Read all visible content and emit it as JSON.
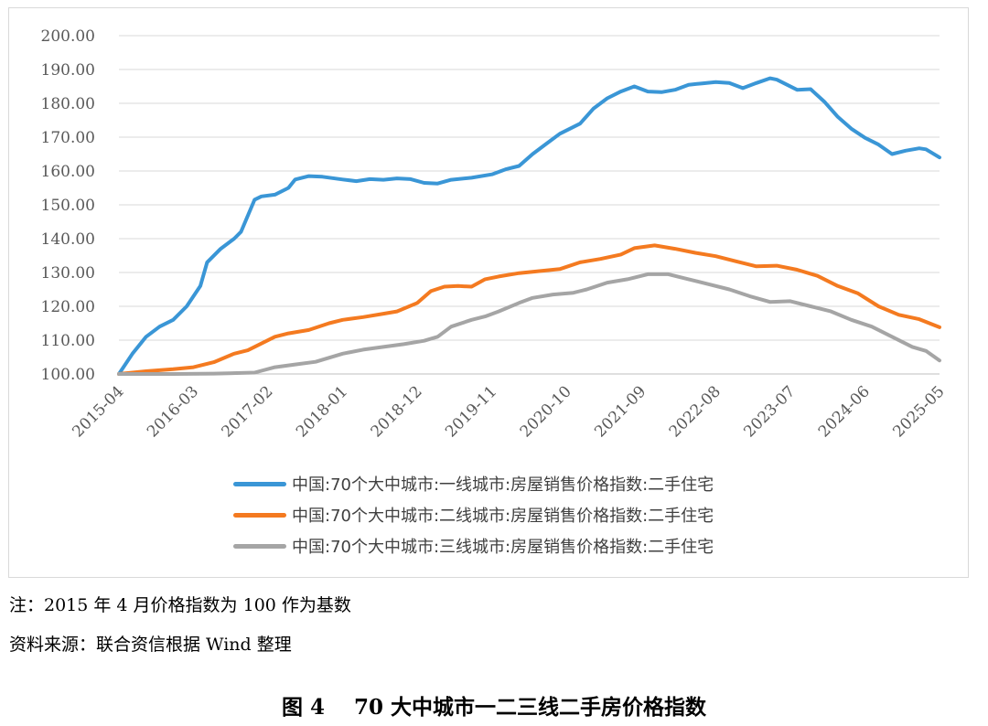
{
  "chart_data": {
    "type": "line",
    "title": "",
    "xlabel": "",
    "ylabel": "",
    "ylim": [
      100,
      200
    ],
    "yticks": [
      "100.00",
      "110.00",
      "120.00",
      "130.00",
      "140.00",
      "150.00",
      "160.00",
      "170.00",
      "180.00",
      "190.00",
      "200.00"
    ],
    "xticks": [
      "2015-04",
      "2016-03",
      "2017-02",
      "2018-01",
      "2018-12",
      "2019-11",
      "2020-10",
      "2021-09",
      "2022-08",
      "2023-07",
      "2024-06",
      "2025-05"
    ],
    "grid": "horizontal",
    "legend_position": "bottom",
    "x_start": "2015-04",
    "x_end": "2025-05",
    "series": [
      {
        "name": "中国:70个大中城市:一线城市:房屋销售价格指数:二手住宅",
        "color": "#3a96d6",
        "points": [
          [
            "2015-04",
            100.0
          ],
          [
            "2015-06",
            106.0
          ],
          [
            "2015-08",
            111.0
          ],
          [
            "2015-10",
            114.0
          ],
          [
            "2015-12",
            116.0
          ],
          [
            "2016-02",
            120.0
          ],
          [
            "2016-04",
            126.0
          ],
          [
            "2016-05",
            133.0
          ],
          [
            "2016-07",
            137.0
          ],
          [
            "2016-09",
            140.0
          ],
          [
            "2016-10",
            142.0
          ],
          [
            "2016-12",
            151.5
          ],
          [
            "2017-01",
            152.5
          ],
          [
            "2017-03",
            153.0
          ],
          [
            "2017-05",
            155.0
          ],
          [
            "2017-06",
            157.5
          ],
          [
            "2017-08",
            158.5
          ],
          [
            "2017-10",
            158.3
          ],
          [
            "2018-01",
            157.5
          ],
          [
            "2018-03",
            157.0
          ],
          [
            "2018-05",
            157.6
          ],
          [
            "2018-07",
            157.4
          ],
          [
            "2018-09",
            157.8
          ],
          [
            "2018-11",
            157.6
          ],
          [
            "2019-01",
            156.5
          ],
          [
            "2019-03",
            156.3
          ],
          [
            "2019-05",
            157.4
          ],
          [
            "2019-08",
            158.0
          ],
          [
            "2019-11",
            159.0
          ],
          [
            "2020-01",
            160.5
          ],
          [
            "2020-03",
            161.5
          ],
          [
            "2020-05",
            165.0
          ],
          [
            "2020-07",
            168.0
          ],
          [
            "2020-09",
            171.0
          ],
          [
            "2020-12",
            174.0
          ],
          [
            "2021-02",
            178.5
          ],
          [
            "2021-04",
            181.5
          ],
          [
            "2021-06",
            183.5
          ],
          [
            "2021-08",
            185.0
          ],
          [
            "2021-10",
            183.5
          ],
          [
            "2021-12",
            183.3
          ],
          [
            "2022-02",
            184.0
          ],
          [
            "2022-04",
            185.5
          ],
          [
            "2022-06",
            185.9
          ],
          [
            "2022-08",
            186.3
          ],
          [
            "2022-10",
            186.0
          ],
          [
            "2022-12",
            184.5
          ],
          [
            "2023-02",
            186.0
          ],
          [
            "2023-04",
            187.4
          ],
          [
            "2023-05",
            187.0
          ],
          [
            "2023-08",
            184.0
          ],
          [
            "2023-10",
            184.2
          ],
          [
            "2023-12",
            180.5
          ],
          [
            "2024-02",
            176.0
          ],
          [
            "2024-04",
            172.5
          ],
          [
            "2024-06",
            169.8
          ],
          [
            "2024-08",
            167.8
          ],
          [
            "2024-10",
            165.0
          ],
          [
            "2024-12",
            166.0
          ],
          [
            "2025-02",
            166.7
          ],
          [
            "2025-03",
            166.4
          ],
          [
            "2025-05",
            164.0
          ]
        ]
      },
      {
        "name": "中国:70个大中城市:二线城市:房屋销售价格指数:二手住宅",
        "color": "#f47a20",
        "points": [
          [
            "2015-04",
            100.0
          ],
          [
            "2015-08",
            100.8
          ],
          [
            "2015-12",
            101.4
          ],
          [
            "2016-03",
            102.0
          ],
          [
            "2016-06",
            103.5
          ],
          [
            "2016-09",
            106.0
          ],
          [
            "2016-11",
            107.0
          ],
          [
            "2017-01",
            109.0
          ],
          [
            "2017-03",
            111.0
          ],
          [
            "2017-05",
            112.0
          ],
          [
            "2017-08",
            113.0
          ],
          [
            "2017-11",
            115.0
          ],
          [
            "2018-01",
            116.0
          ],
          [
            "2018-04",
            116.8
          ],
          [
            "2018-07",
            117.8
          ],
          [
            "2018-09",
            118.5
          ],
          [
            "2018-12",
            121.0
          ],
          [
            "2019-02",
            124.5
          ],
          [
            "2019-04",
            125.8
          ],
          [
            "2019-06",
            126.0
          ],
          [
            "2019-08",
            125.8
          ],
          [
            "2019-10",
            128.0
          ],
          [
            "2019-12",
            128.8
          ],
          [
            "2020-03",
            129.8
          ],
          [
            "2020-06",
            130.4
          ],
          [
            "2020-09",
            131.0
          ],
          [
            "2020-12",
            133.0
          ],
          [
            "2021-03",
            134.0
          ],
          [
            "2021-06",
            135.3
          ],
          [
            "2021-08",
            137.2
          ],
          [
            "2021-11",
            138.0
          ],
          [
            "2022-02",
            137.0
          ],
          [
            "2022-05",
            135.8
          ],
          [
            "2022-08",
            134.8
          ],
          [
            "2022-11",
            133.3
          ],
          [
            "2023-02",
            131.8
          ],
          [
            "2023-05",
            132.0
          ],
          [
            "2023-08",
            130.8
          ],
          [
            "2023-11",
            129.0
          ],
          [
            "2024-02",
            126.0
          ],
          [
            "2024-05",
            123.8
          ],
          [
            "2024-08",
            120.0
          ],
          [
            "2024-11",
            117.5
          ],
          [
            "2025-02",
            116.2
          ],
          [
            "2025-05",
            113.8
          ]
        ]
      },
      {
        "name": "中国:70个大中城市:三线城市:房屋销售价格指数:二手住宅",
        "color": "#a5a5a5",
        "points": [
          [
            "2015-04",
            100.0
          ],
          [
            "2015-12",
            100.0
          ],
          [
            "2016-06",
            100.1
          ],
          [
            "2016-12",
            100.4
          ],
          [
            "2017-03",
            102.0
          ],
          [
            "2017-06",
            102.8
          ],
          [
            "2017-09",
            103.6
          ],
          [
            "2018-01",
            106.0
          ],
          [
            "2018-04",
            107.2
          ],
          [
            "2018-07",
            108.0
          ],
          [
            "2018-10",
            108.8
          ],
          [
            "2019-01",
            109.8
          ],
          [
            "2019-03",
            111.0
          ],
          [
            "2019-05",
            114.0
          ],
          [
            "2019-08",
            116.0
          ],
          [
            "2019-10",
            117.0
          ],
          [
            "2019-12",
            118.5
          ],
          [
            "2020-03",
            121.0
          ],
          [
            "2020-05",
            122.5
          ],
          [
            "2020-08",
            123.5
          ],
          [
            "2020-11",
            124.0
          ],
          [
            "2021-01",
            125.0
          ],
          [
            "2021-04",
            127.0
          ],
          [
            "2021-07",
            128.0
          ],
          [
            "2021-10",
            129.5
          ],
          [
            "2022-01",
            129.5
          ],
          [
            "2022-04",
            128.0
          ],
          [
            "2022-07",
            126.5
          ],
          [
            "2022-10",
            125.0
          ],
          [
            "2023-01",
            123.0
          ],
          [
            "2023-04",
            121.3
          ],
          [
            "2023-07",
            121.5
          ],
          [
            "2023-10",
            120.0
          ],
          [
            "2024-01",
            118.5
          ],
          [
            "2024-04",
            116.0
          ],
          [
            "2024-07",
            114.0
          ],
          [
            "2024-10",
            111.0
          ],
          [
            "2025-01",
            108.0
          ],
          [
            "2025-03",
            106.8
          ],
          [
            "2025-05",
            104.0
          ]
        ]
      }
    ]
  },
  "notes": {
    "note1": "注：2015 年 4 月价格指数为 100 作为基数",
    "note2": "资料来源：联合资信根据 Wind 整理"
  },
  "caption": "图 4    70 大中城市一二三线二手房价格指数"
}
